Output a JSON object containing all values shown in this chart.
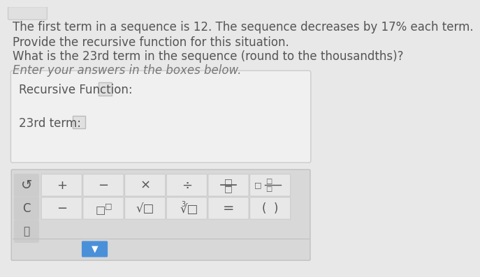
{
  "page_bg": "#e8e8e8",
  "title_lines": [
    "The first term in a sequence is 12. The sequence decreases by 17% each term.",
    "Provide the recursive function for this situation.",
    "What is the 23rd term in the sequence (round to the thousandths)?",
    "Enter your answers in the boxes below."
  ],
  "title_italic": [
    false,
    false,
    false,
    true
  ],
  "title_color": "#555555",
  "italic_color": "#777777",
  "answer_box_bg": "#f0f0f0",
  "answer_box_border": "#cccccc",
  "label1": "Recursive Function:",
  "label2": "23rd term:",
  "label_color": "#555555",
  "input_box_bg": "#e0e0e0",
  "input_box_border": "#bbbbbb",
  "kb_bg": "#d8d8d8",
  "kb_border": "#c0c0c0",
  "key_bg": "#e8e8e8",
  "key_border": "#cccccc",
  "key_fg": "#555555",
  "left_key_bg": "#cccccc",
  "left_key_border": "#bbbbbb",
  "blue_btn": "#4a90d9",
  "top_box_bg": "#e0e0e0",
  "top_box_border": "#cccccc",
  "font_size": 12
}
